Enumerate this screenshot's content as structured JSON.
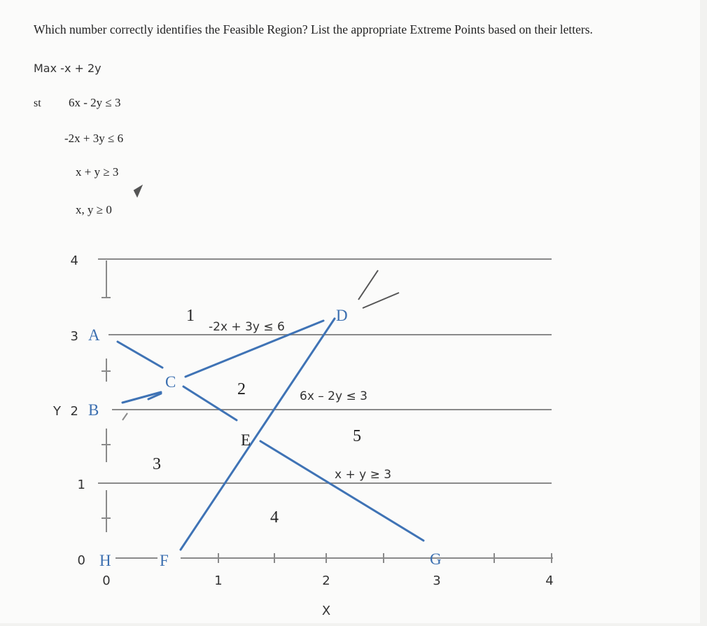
{
  "question": "Which number correctly identifies the Feasible Region? List the appropriate Extreme Points based on their letters.",
  "objective": "Max -x + 2y",
  "constraints": {
    "label": "st",
    "items": [
      "6x - 2y ≤ 3",
      "-2x + 3y ≤ 6",
      "x + y ≥ 3",
      "x, y ≥ 0"
    ]
  },
  "graph": {
    "y_axis_label": "Y",
    "x_axis_label": "X",
    "y_ticks": [
      "4",
      "3",
      "2",
      "1",
      "0"
    ],
    "x_ticks": [
      "0",
      "1",
      "2",
      "3",
      "4"
    ],
    "points": [
      "A",
      "B",
      "C",
      "D",
      "E",
      "F",
      "G",
      "H"
    ],
    "regions": [
      "1",
      "2",
      "3",
      "4",
      "5"
    ],
    "line_labels": [
      "-2x + 3y ≤ 6",
      "6x – 2y ≤ 3",
      "x + y ≥ 3"
    ]
  }
}
